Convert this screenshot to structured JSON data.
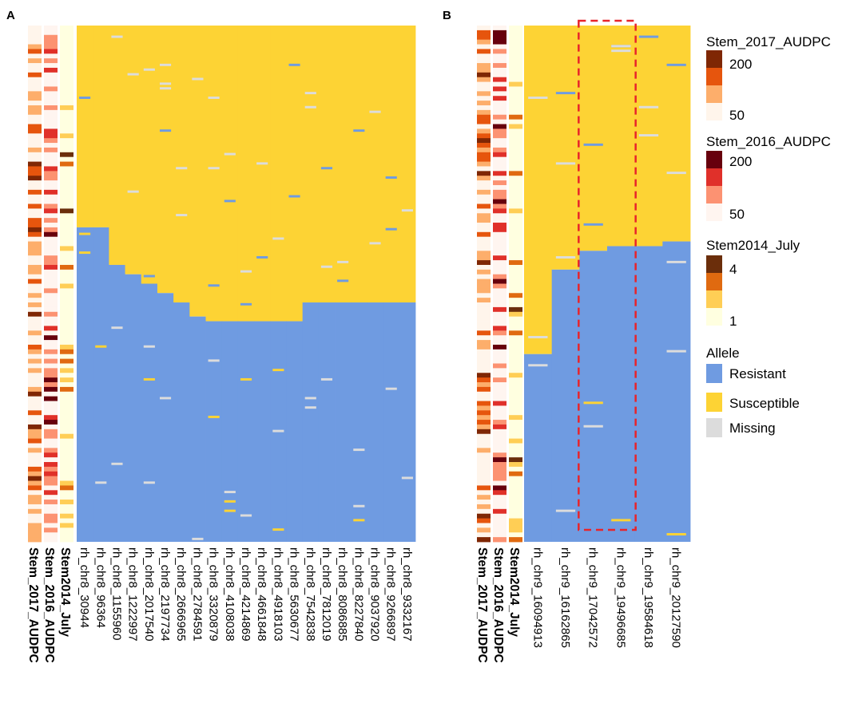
{
  "chart_data": [
    {
      "panel": "A",
      "type": "heatmap",
      "annotation_tracks": [
        "Stem_2017_AUDPC",
        "Stem_2016_AUDPC",
        "Stem2014_July"
      ],
      "columns": [
        "rh_chr8_30944",
        "rh_chr8_96364",
        "rh_chr8_1155960",
        "rh_chr8_1222997",
        "rh_chr8_2017540",
        "rh_chr8_2197734",
        "rh_chr8_2666965",
        "rh_chr8_2784591",
        "rh_chr8_3320879",
        "rh_chr8_4108038",
        "rh_chr8_4214869",
        "rh_chr8_4661848",
        "rh_chr8_4918103",
        "rh_chr8_5630677",
        "rh_chr8_7542838",
        "rh_chr8_7812019",
        "rh_chr8_8086885",
        "rh_chr8_8227840",
        "rh_chr8_9037920",
        "rh_chr8_9266897",
        "rh_chr8_9332167"
      ],
      "cell_values": [
        "Resistant",
        "Susceptible",
        "Missing"
      ],
      "resistant_start_row_fraction": [
        0.39,
        0.39,
        0.46,
        0.48,
        0.5,
        0.52,
        0.54,
        0.56,
        0.57,
        0.57,
        0.57,
        0.57,
        0.57,
        0.57,
        0.54,
        0.54,
        0.54,
        0.54,
        0.54,
        0.54,
        0.54
      ]
    },
    {
      "panel": "B",
      "type": "heatmap",
      "annotation_tracks": [
        "Stem_2017_AUDPC",
        "Stem_2016_AUDPC",
        "Stem2014_July"
      ],
      "columns": [
        "rh_chr9_16094913",
        "rh_chr9_16162865",
        "rh_chr9_17042572",
        "rh_chr9_19496685",
        "rh_chr9_19584618",
        "rh_chr9_20127590"
      ],
      "highlighted_columns": [
        "rh_chr9_17042572",
        "rh_chr9_19496685"
      ],
      "cell_values": [
        "Resistant",
        "Susceptible",
        "Missing"
      ],
      "resistant_start_row_fraction": [
        0.64,
        0.47,
        0.44,
        0.43,
        0.43,
        0.42
      ]
    }
  ],
  "panels": {
    "a": "A",
    "b": "B"
  },
  "legend": {
    "stem2017": {
      "title": "Stem_2017_AUDPC",
      "high": "200",
      "low": "50",
      "colors": [
        "#7f2704",
        "#e6550d",
        "#fdae6b",
        "#fff5eb"
      ]
    },
    "stem2016": {
      "title": "Stem_2016_AUDPC",
      "high": "200",
      "low": "50",
      "colors": [
        "#67000d",
        "#e0302a",
        "#fc9272",
        "#fff5f0"
      ]
    },
    "stem2014": {
      "title": "Stem2014_July",
      "high": "4",
      "low": "1",
      "colors": [
        "#6b2e0b",
        "#e06a10",
        "#ffce55",
        "#ffffe0"
      ]
    },
    "allele": {
      "title": "Allele",
      "items": [
        {
          "label": "Resistant",
          "color": "#6f9be1"
        },
        {
          "label": "Susceptible",
          "color": "#fdd334"
        },
        {
          "label": "Missing",
          "color": "#dcdcdc"
        }
      ]
    }
  },
  "colors": {
    "resistant": "#6f9be1",
    "susceptible": "#fdd334",
    "missing": "#dcdcdc",
    "highlight": "#e8242a"
  }
}
